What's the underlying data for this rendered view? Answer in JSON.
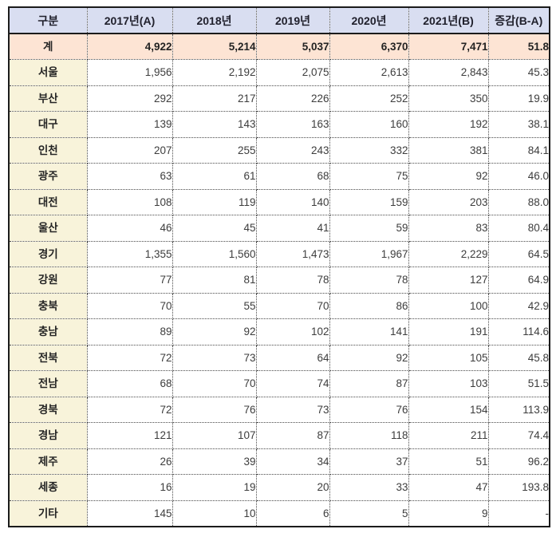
{
  "colors": {
    "header_bg": "#d9def1",
    "total_row_bg": "#fde4d4",
    "label_col_bg": "#f8f3da",
    "outer_border": "#1b1b1b",
    "grid_dotted": "#4a4a4a"
  },
  "chart_data": {
    "type": "table",
    "columns": [
      "구분",
      "2017년(A)",
      "2018년",
      "2019년",
      "2020년",
      "2021년(B)",
      "증감(B-A)"
    ],
    "rows": [
      {
        "label": "계",
        "is_total": true,
        "values": [
          "4,922",
          "5,214",
          "5,037",
          "6,370",
          "7,471",
          "51.8"
        ]
      },
      {
        "label": "서울",
        "is_total": false,
        "values": [
          "1,956",
          "2,192",
          "2,075",
          "2,613",
          "2,843",
          "45.3"
        ]
      },
      {
        "label": "부산",
        "is_total": false,
        "values": [
          "292",
          "217",
          "226",
          "252",
          "350",
          "19.9"
        ]
      },
      {
        "label": "대구",
        "is_total": false,
        "values": [
          "139",
          "143",
          "163",
          "160",
          "192",
          "38.1"
        ]
      },
      {
        "label": "인천",
        "is_total": false,
        "values": [
          "207",
          "255",
          "243",
          "332",
          "381",
          "84.1"
        ]
      },
      {
        "label": "광주",
        "is_total": false,
        "values": [
          "63",
          "61",
          "68",
          "75",
          "92",
          "46.0"
        ]
      },
      {
        "label": "대전",
        "is_total": false,
        "values": [
          "108",
          "119",
          "140",
          "159",
          "203",
          "88.0"
        ]
      },
      {
        "label": "울산",
        "is_total": false,
        "values": [
          "46",
          "45",
          "41",
          "59",
          "83",
          "80.4"
        ]
      },
      {
        "label": "경기",
        "is_total": false,
        "values": [
          "1,355",
          "1,560",
          "1,473",
          "1,967",
          "2,229",
          "64.5"
        ]
      },
      {
        "label": "강원",
        "is_total": false,
        "values": [
          "77",
          "81",
          "78",
          "78",
          "127",
          "64.9"
        ]
      },
      {
        "label": "충북",
        "is_total": false,
        "values": [
          "70",
          "55",
          "70",
          "86",
          "100",
          "42.9"
        ]
      },
      {
        "label": "충남",
        "is_total": false,
        "values": [
          "89",
          "92",
          "102",
          "141",
          "191",
          "114.6"
        ]
      },
      {
        "label": "전북",
        "is_total": false,
        "values": [
          "72",
          "73",
          "64",
          "92",
          "105",
          "45.8"
        ]
      },
      {
        "label": "전남",
        "is_total": false,
        "values": [
          "68",
          "70",
          "74",
          "87",
          "103",
          "51.5"
        ]
      },
      {
        "label": "경북",
        "is_total": false,
        "values": [
          "72",
          "76",
          "73",
          "76",
          "154",
          "113.9"
        ]
      },
      {
        "label": "경남",
        "is_total": false,
        "values": [
          "121",
          "107",
          "87",
          "118",
          "211",
          "74.4"
        ]
      },
      {
        "label": "제주",
        "is_total": false,
        "values": [
          "26",
          "39",
          "34",
          "37",
          "51",
          "96.2"
        ]
      },
      {
        "label": "세종",
        "is_total": false,
        "values": [
          "16",
          "19",
          "20",
          "33",
          "47",
          "193.8"
        ]
      },
      {
        "label": "기타",
        "is_total": false,
        "values": [
          "145",
          "10",
          "6",
          "5",
          "9",
          "-"
        ]
      }
    ]
  }
}
